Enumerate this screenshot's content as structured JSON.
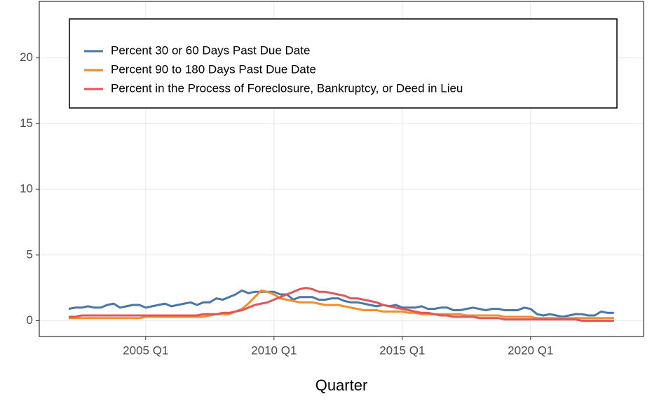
{
  "chart_data": {
    "type": "line",
    "x_label": "Quarter",
    "categories": [
      "2002 Q1",
      "2002 Q2",
      "2002 Q3",
      "2002 Q4",
      "2003 Q1",
      "2003 Q2",
      "2003 Q3",
      "2003 Q4",
      "2004 Q1",
      "2004 Q2",
      "2004 Q3",
      "2004 Q4",
      "2005 Q1",
      "2005 Q2",
      "2005 Q3",
      "2005 Q4",
      "2006 Q1",
      "2006 Q2",
      "2006 Q3",
      "2006 Q4",
      "2007 Q1",
      "2007 Q2",
      "2007 Q3",
      "2007 Q4",
      "2008 Q1",
      "2008 Q2",
      "2008 Q3",
      "2008 Q4",
      "2009 Q1",
      "2009 Q2",
      "2009 Q3",
      "2009 Q4",
      "2010 Q1",
      "2010 Q2",
      "2010 Q3",
      "2010 Q4",
      "2011 Q1",
      "2011 Q2",
      "2011 Q3",
      "2011 Q4",
      "2012 Q1",
      "2012 Q2",
      "2012 Q3",
      "2012 Q4",
      "2013 Q1",
      "2013 Q2",
      "2013 Q3",
      "2013 Q4",
      "2014 Q1",
      "2014 Q2",
      "2014 Q3",
      "2014 Q4",
      "2015 Q1",
      "2015 Q2",
      "2015 Q3",
      "2015 Q4",
      "2016 Q1",
      "2016 Q2",
      "2016 Q3",
      "2016 Q4",
      "2017 Q1",
      "2017 Q2",
      "2017 Q3",
      "2017 Q4",
      "2018 Q1",
      "2018 Q2",
      "2018 Q3",
      "2018 Q4",
      "2019 Q1",
      "2019 Q2",
      "2019 Q3",
      "2019 Q4",
      "2020 Q1",
      "2020 Q2",
      "2020 Q3",
      "2020 Q4",
      "2021 Q1",
      "2021 Q2",
      "2021 Q3",
      "2021 Q4",
      "2022 Q1",
      "2022 Q2",
      "2022 Q3",
      "2022 Q4",
      "2023 Q1",
      "2023 Q2"
    ],
    "xticks": [
      "2005 Q1",
      "2010 Q1",
      "2015 Q1",
      "2020 Q1"
    ],
    "ylim": [
      -1.2,
      24.3
    ],
    "yticks": [
      0,
      5,
      10,
      15,
      20
    ],
    "grid": true,
    "legend": "top-left",
    "series": [
      {
        "name": "Percent 30 or 60 Days Past Due Date",
        "color": "#4a77a8",
        "values": [
          0.9,
          1.0,
          1.0,
          1.1,
          1.0,
          1.0,
          1.2,
          1.3,
          1.0,
          1.1,
          1.2,
          1.2,
          1.0,
          1.1,
          1.2,
          1.3,
          1.1,
          1.2,
          1.3,
          1.4,
          1.2,
          1.4,
          1.4,
          1.7,
          1.6,
          1.8,
          2.0,
          2.3,
          2.1,
          2.2,
          2.2,
          2.2,
          2.2,
          2.0,
          2.0,
          1.6,
          1.8,
          1.8,
          1.8,
          1.6,
          1.6,
          1.7,
          1.7,
          1.5,
          1.4,
          1.4,
          1.3,
          1.2,
          1.1,
          1.2,
          1.1,
          1.2,
          1.0,
          1.0,
          1.0,
          1.1,
          0.9,
          0.9,
          1.0,
          1.0,
          0.8,
          0.8,
          0.9,
          1.0,
          0.9,
          0.8,
          0.9,
          0.9,
          0.8,
          0.8,
          0.8,
          1.0,
          0.9,
          0.5,
          0.4,
          0.5,
          0.4,
          0.3,
          0.4,
          0.5,
          0.5,
          0.4,
          0.4,
          0.7,
          0.6,
          0.6
        ]
      },
      {
        "name": "Percent 90 to 180 Days Past Due Date",
        "color": "#f28e2b",
        "values": [
          0.2,
          0.2,
          0.2,
          0.2,
          0.2,
          0.2,
          0.2,
          0.2,
          0.2,
          0.2,
          0.2,
          0.2,
          0.3,
          0.3,
          0.3,
          0.3,
          0.3,
          0.3,
          0.3,
          0.3,
          0.3,
          0.3,
          0.4,
          0.5,
          0.5,
          0.5,
          0.7,
          0.9,
          1.3,
          1.8,
          2.3,
          2.2,
          2.0,
          1.7,
          1.6,
          1.5,
          1.4,
          1.4,
          1.4,
          1.3,
          1.2,
          1.2,
          1.2,
          1.1,
          1.0,
          0.9,
          0.8,
          0.8,
          0.8,
          0.7,
          0.7,
          0.7,
          0.7,
          0.6,
          0.6,
          0.5,
          0.5,
          0.5,
          0.5,
          0.5,
          0.5,
          0.5,
          0.4,
          0.4,
          0.4,
          0.4,
          0.4,
          0.4,
          0.3,
          0.3,
          0.3,
          0.3,
          0.3,
          0.2,
          0.2,
          0.2,
          0.2,
          0.2,
          0.2,
          0.2,
          0.2,
          0.2,
          0.2,
          0.2,
          0.2,
          0.2
        ]
      },
      {
        "name": "Percent in the Process of Foreclosure, Bankruptcy, or Deed in Lieu",
        "color": "#e15759",
        "values": [
          0.3,
          0.3,
          0.4,
          0.4,
          0.4,
          0.4,
          0.4,
          0.4,
          0.4,
          0.4,
          0.4,
          0.4,
          0.4,
          0.4,
          0.4,
          0.4,
          0.4,
          0.4,
          0.4,
          0.4,
          0.4,
          0.5,
          0.5,
          0.5,
          0.6,
          0.6,
          0.7,
          0.8,
          1.0,
          1.2,
          1.3,
          1.4,
          1.6,
          1.8,
          2.0,
          2.2,
          2.4,
          2.5,
          2.4,
          2.2,
          2.2,
          2.1,
          2.0,
          1.9,
          1.7,
          1.7,
          1.6,
          1.5,
          1.4,
          1.2,
          1.1,
          1.0,
          0.9,
          0.8,
          0.7,
          0.6,
          0.6,
          0.5,
          0.4,
          0.4,
          0.3,
          0.3,
          0.3,
          0.3,
          0.2,
          0.2,
          0.2,
          0.2,
          0.1,
          0.1,
          0.1,
          0.1,
          0.1,
          0.1,
          0.1,
          0.1,
          0.1,
          0.1,
          0.1,
          0.1,
          0.0,
          0.0,
          0.0,
          0.0,
          0.0,
          0.0
        ]
      }
    ]
  }
}
